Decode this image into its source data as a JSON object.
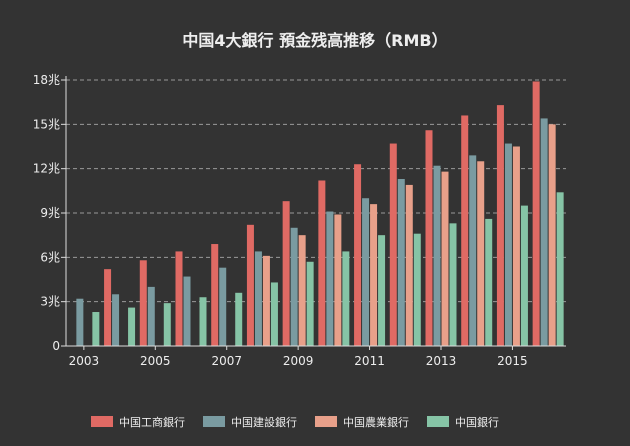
{
  "chart_data": {
    "type": "bar",
    "title": "中国4大銀行 預金残高推移（RMB）",
    "xlabel": "",
    "ylabel": "",
    "ylim": [
      0,
      18
    ],
    "yticks": [
      "0",
      "3兆",
      "6兆",
      "9兆",
      "12兆",
      "15兆",
      "18兆"
    ],
    "categories": [
      "2003",
      "2004",
      "2005",
      "2006",
      "2007",
      "2008",
      "2009",
      "2010",
      "2011",
      "2012",
      "2013",
      "2014",
      "2015",
      "2016"
    ],
    "x_tick_labels": [
      "2003",
      "2005",
      "2007",
      "2009",
      "2011",
      "2013",
      "2015"
    ],
    "grid": true,
    "legend_position": "bottom",
    "series": [
      {
        "name": "中国工商銀行",
        "color": "#e06a64",
        "values": [
          null,
          5.2,
          5.8,
          6.4,
          6.9,
          8.2,
          9.8,
          11.2,
          12.3,
          13.7,
          14.6,
          15.6,
          16.3,
          17.9
        ]
      },
      {
        "name": "中国建設銀行",
        "color": "#7a9ba1",
        "values": [
          3.2,
          3.5,
          4.0,
          4.7,
          5.3,
          6.4,
          8.0,
          9.1,
          10.0,
          11.3,
          12.2,
          12.9,
          13.7,
          15.4
        ]
      },
      {
        "name": "中国農業銀行",
        "color": "#e8a08a",
        "values": [
          null,
          null,
          null,
          null,
          null,
          6.1,
          7.5,
          8.9,
          9.6,
          10.9,
          11.8,
          12.5,
          13.5,
          15.0
        ]
      },
      {
        "name": "中国銀行",
        "color": "#86c4a6",
        "values": [
          2.3,
          2.6,
          2.9,
          3.3,
          3.6,
          4.3,
          5.7,
          6.4,
          7.5,
          7.6,
          8.3,
          8.6,
          9.5,
          10.4
        ]
      }
    ]
  }
}
